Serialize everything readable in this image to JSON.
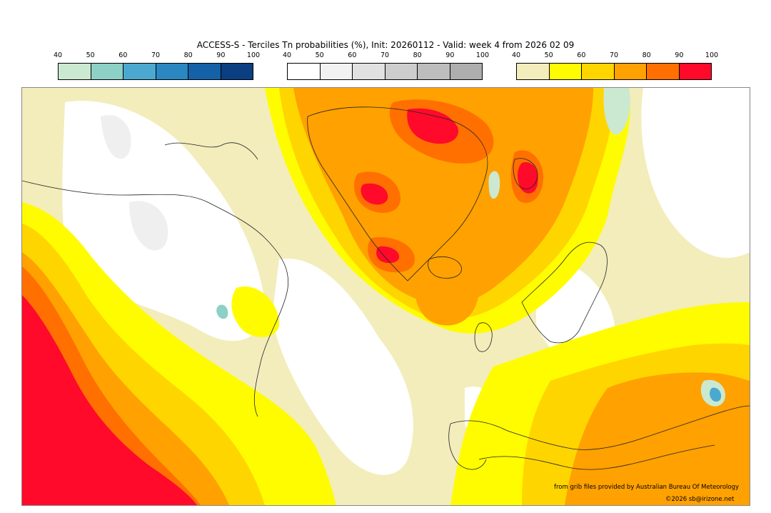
{
  "title": "ACCESS-S - Terciles Tn probabilities (%), Init: 20260112 - Valid: week 4 from 2026 02 09",
  "legends": [
    {
      "ticks": [
        "40",
        "50",
        "60",
        "70",
        "80",
        "90",
        "100"
      ],
      "colors": [
        "#cbe9d0",
        "#8dd0c5",
        "#4ba9cf",
        "#2a87c0",
        "#1461a7",
        "#0a3f82"
      ]
    },
    {
      "ticks": [
        "40",
        "50",
        "60",
        "70",
        "80",
        "90",
        "100"
      ],
      "colors": [
        "#ffffff",
        "#f2f2f2",
        "#e1e1e1",
        "#cdcdcd",
        "#bdbdbd",
        "#aeaeae"
      ]
    },
    {
      "ticks": [
        "40",
        "50",
        "60",
        "70",
        "80",
        "90",
        "100"
      ],
      "colors": [
        "#f2edbb",
        "#fffc00",
        "#ffd500",
        "#ffa100",
        "#ff7000",
        "#ff0a2a"
      ]
    }
  ],
  "credits": {
    "source": "from grib files provided by Australian Bureau Of Meteorology",
    "copyright": "©2026 sb@irizone.net"
  }
}
